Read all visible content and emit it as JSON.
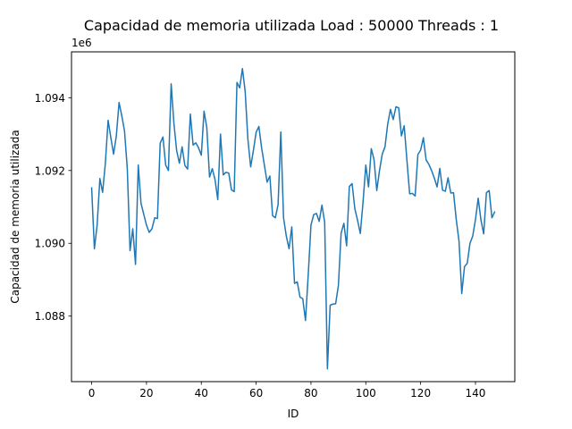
{
  "chart_data": {
    "type": "line",
    "title": "Capacidad de memoria utilizada Load : 50000 Threads : 1",
    "xlabel": "ID",
    "ylabel": "Capacidad de memoria utilizada",
    "y_offset_label": "1e6",
    "xlim": [
      -7.35,
      154.35
    ],
    "ylim": [
      1086200,
      1095260
    ],
    "x_ticks": [
      0,
      20,
      40,
      60,
      80,
      100,
      120,
      140
    ],
    "x_tick_labels": [
      "0",
      "20",
      "40",
      "60",
      "80",
      "100",
      "120",
      "140"
    ],
    "y_ticks": [
      1088000,
      1090000,
      1092000,
      1094000
    ],
    "y_tick_labels": [
      "1.088",
      "1.090",
      "1.092",
      "1.094"
    ],
    "grid": false,
    "series": [
      {
        "color": "#1f77b4",
        "x": [
          0,
          1,
          2,
          3,
          4,
          5,
          6,
          7,
          8,
          9,
          10,
          11,
          12,
          13,
          14,
          15,
          16,
          17,
          18,
          19,
          20,
          21,
          22,
          23,
          24,
          25,
          26,
          27,
          28,
          29,
          30,
          31,
          32,
          33,
          34,
          35,
          36,
          37,
          38,
          39,
          40,
          41,
          42,
          43,
          44,
          45,
          46,
          47,
          48,
          49,
          50,
          51,
          52,
          53,
          54,
          55,
          56,
          57,
          58,
          59,
          60,
          61,
          62,
          63,
          64,
          65,
          66,
          67,
          68,
          69,
          70,
          71,
          72,
          73,
          74,
          75,
          76,
          77,
          78,
          79,
          80,
          81,
          82,
          83,
          84,
          85,
          86,
          87,
          88,
          89,
          90,
          91,
          92,
          93,
          94,
          95,
          96,
          97,
          98,
          99,
          100,
          101,
          102,
          103,
          104,
          105,
          106,
          107,
          108,
          109,
          110,
          111,
          112,
          113,
          114,
          115,
          116,
          117,
          118,
          119,
          120,
          121,
          122,
          123,
          124,
          125,
          126,
          127,
          128,
          129,
          130,
          131,
          132,
          133,
          134,
          135,
          136,
          137,
          138,
          139,
          140,
          141,
          142,
          143,
          144,
          145,
          146,
          147
        ],
        "y": [
          1091520,
          1089850,
          1090500,
          1091780,
          1091400,
          1092200,
          1093380,
          1092900,
          1092450,
          1092950,
          1093870,
          1093500,
          1093080,
          1092050,
          1089800,
          1090400,
          1089420,
          1092150,
          1091100,
          1090800,
          1090500,
          1090300,
          1090400,
          1090700,
          1090680,
          1092750,
          1092920,
          1092150,
          1092000,
          1094380,
          1093300,
          1092550,
          1092200,
          1092650,
          1092140,
          1092040,
          1093550,
          1092700,
          1092760,
          1092620,
          1092420,
          1093630,
          1093180,
          1091820,
          1092050,
          1091750,
          1091200,
          1093000,
          1091880,
          1091950,
          1091930,
          1091470,
          1091420,
          1094420,
          1094270,
          1094800,
          1094170,
          1092850,
          1092100,
          1092550,
          1093050,
          1093210,
          1092620,
          1092150,
          1091680,
          1091850,
          1090760,
          1090700,
          1091060,
          1093060,
          1090700,
          1090200,
          1089850,
          1090450,
          1088900,
          1088940,
          1088520,
          1088480,
          1087880,
          1089130,
          1090500,
          1090790,
          1090820,
          1090600,
          1091050,
          1090580,
          1086550,
          1088300,
          1088330,
          1088340,
          1088840,
          1090280,
          1090550,
          1089930,
          1091560,
          1091640,
          1090950,
          1090630,
          1090270,
          1091140,
          1092150,
          1091550,
          1092600,
          1092300,
          1091450,
          1092000,
          1092450,
          1092650,
          1093280,
          1093680,
          1093400,
          1093750,
          1093720,
          1092950,
          1093230,
          1092280,
          1091360,
          1091370,
          1091300,
          1092440,
          1092560,
          1092900,
          1092290,
          1092170,
          1092000,
          1091790,
          1091550,
          1092060,
          1091460,
          1091430,
          1091800,
          1091380,
          1091390,
          1090650,
          1090060,
          1088620,
          1089360,
          1089450,
          1090000,
          1090200,
          1090650,
          1091240,
          1090640,
          1090260,
          1091390,
          1091450,
          1090700,
          1090860
        ]
      }
    ]
  }
}
